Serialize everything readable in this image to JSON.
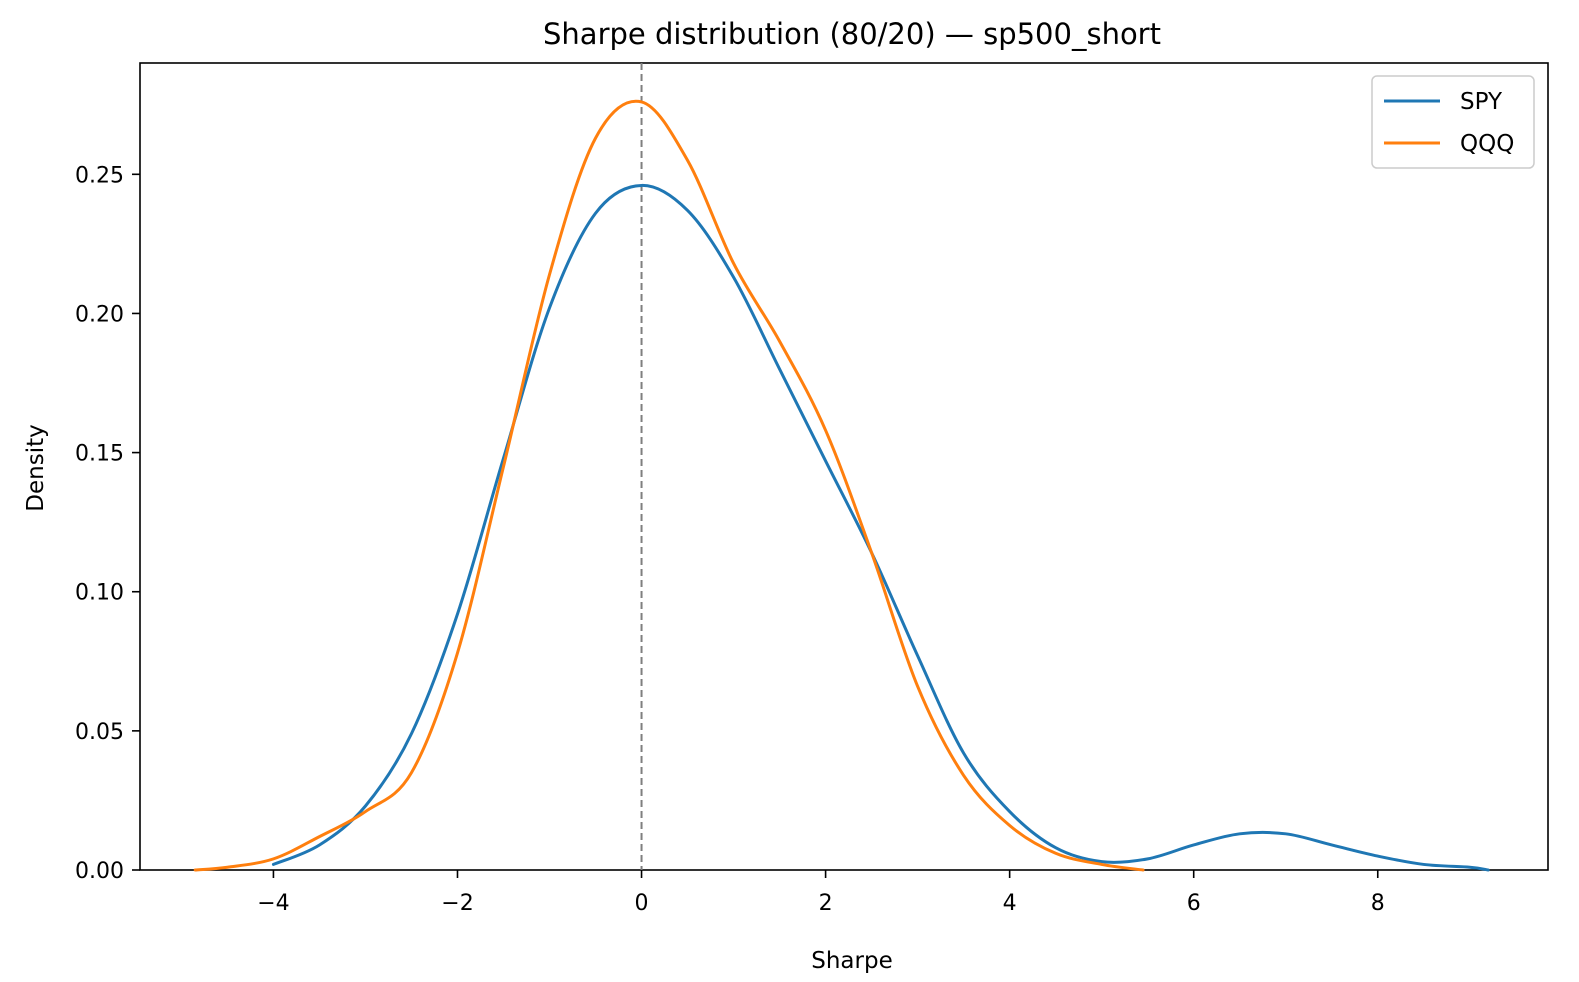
{
  "chart_data": {
    "type": "line",
    "title": "Sharpe distribution (80/20) — sp500_short",
    "xlabel": "Sharpe",
    "ylabel": "Density",
    "xlim": [
      -5.45,
      9.85
    ],
    "ylim": [
      0,
      0.29
    ],
    "xticks": [
      -4,
      -2,
      0,
      2,
      4,
      6,
      8
    ],
    "xtick_labels": [
      "−4",
      "−2",
      "0",
      "2",
      "4",
      "6",
      "8"
    ],
    "yticks": [
      0.0,
      0.05,
      0.1,
      0.15,
      0.2,
      0.25
    ],
    "ytick_labels": [
      "0.00",
      "0.05",
      "0.10",
      "0.15",
      "0.20",
      "0.25"
    ],
    "grid": false,
    "legend_position": "top-right",
    "reference_line": {
      "x": 0,
      "style": "dashed",
      "color": "#7f7f7f"
    },
    "series": [
      {
        "name": "SPY",
        "color": "#1f77b4",
        "x": [
          -4.0,
          -3.5,
          -3.0,
          -2.5,
          -2.0,
          -1.5,
          -1.0,
          -0.5,
          0.0,
          0.5,
          1.0,
          1.5,
          2.0,
          2.5,
          3.0,
          3.5,
          4.0,
          4.5,
          5.0,
          5.5,
          6.0,
          6.5,
          7.0,
          7.5,
          8.0,
          8.5,
          9.0,
          9.2
        ],
        "y": [
          0.002,
          0.009,
          0.023,
          0.049,
          0.092,
          0.148,
          0.202,
          0.236,
          0.246,
          0.237,
          0.213,
          0.18,
          0.147,
          0.114,
          0.077,
          0.042,
          0.021,
          0.008,
          0.003,
          0.004,
          0.009,
          0.013,
          0.013,
          0.009,
          0.005,
          0.002,
          0.001,
          0.0
        ]
      },
      {
        "name": "QQQ",
        "color": "#ff7f0e",
        "x": [
          -4.85,
          -4.5,
          -4.0,
          -3.5,
          -3.0,
          -2.5,
          -2.0,
          -1.5,
          -1.0,
          -0.5,
          0.0,
          0.5,
          1.0,
          1.5,
          2.0,
          2.5,
          3.0,
          3.5,
          4.0,
          4.5,
          5.0,
          5.45
        ],
        "y": [
          0.0,
          0.001,
          0.004,
          0.012,
          0.021,
          0.035,
          0.078,
          0.145,
          0.214,
          0.263,
          0.276,
          0.255,
          0.218,
          0.19,
          0.158,
          0.114,
          0.066,
          0.034,
          0.016,
          0.006,
          0.002,
          0.0
        ]
      }
    ]
  }
}
